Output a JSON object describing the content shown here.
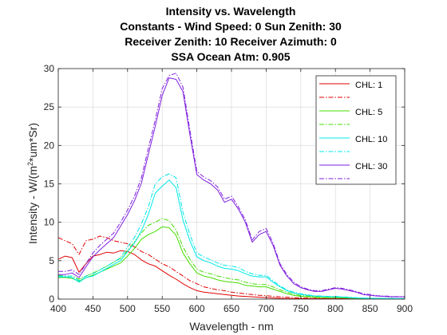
{
  "chart_data": {
    "type": "line",
    "title_lines": [
      "Intensity vs. Wavelength",
      "Constants - Wind Speed: 0 Sun Zenith: 30",
      "Receiver Zenith: 10 Receiver Azimuth: 0",
      "SSA Ocean Atm: 0.905"
    ],
    "xlabel": "Wavelength - nm",
    "ylabel": {
      "prefix": "Intensity - W/(m",
      "superscript": "2",
      "suffix": "*um*Sr)"
    },
    "xlim": [
      400,
      900
    ],
    "ylim": [
      0,
      30
    ],
    "xticks": [
      "400",
      "450",
      "500",
      "550",
      "600",
      "650",
      "700",
      "750",
      "800",
      "850",
      "900"
    ],
    "yticks": [
      "0",
      "5",
      "10",
      "15",
      "20",
      "25",
      "30"
    ],
    "grid": true,
    "legend_position": "top-right",
    "legend_labels": [
      "CHL: 1",
      "CHL: 5",
      "CHL: 10",
      "CHL: 30"
    ],
    "x": [
      400,
      410,
      420,
      430,
      440,
      450,
      460,
      470,
      480,
      490,
      500,
      510,
      520,
      530,
      540,
      550,
      560,
      570,
      580,
      590,
      600,
      610,
      620,
      630,
      640,
      650,
      660,
      670,
      680,
      690,
      700,
      710,
      720,
      730,
      740,
      750,
      760,
      770,
      780,
      790,
      800,
      810,
      820,
      830,
      840,
      850,
      860,
      870,
      880,
      890,
      900
    ],
    "series": [
      {
        "color": "#e00000",
        "dash": "solid",
        "values": [
          5.2,
          5.6,
          5.4,
          3.5,
          4.6,
          5.6,
          5.8,
          6.1,
          6.0,
          6.3,
          6.2,
          5.8,
          5.1,
          4.6,
          4.3,
          3.7,
          3.1,
          2.6,
          2.0,
          1.5,
          1.1,
          0.9,
          0.8,
          0.7,
          0.6,
          0.5,
          0.4,
          0.35,
          0.3,
          0.25,
          0.2,
          0.15,
          0.1,
          0.08,
          0.06,
          0.05,
          0.05,
          0.05,
          0.05,
          0.05,
          0.05,
          0.05,
          0.05,
          0.05,
          0.05,
          0.05,
          0.05,
          0.05,
          0.05,
          0.05,
          0.05
        ]
      },
      {
        "color": "#e00000",
        "dash": "dashdot",
        "values": [
          8.0,
          7.6,
          7.2,
          5.8,
          7.6,
          7.8,
          8.2,
          8.0,
          7.6,
          7.4,
          7.2,
          6.8,
          6.2,
          5.8,
          5.2,
          4.6,
          4.2,
          3.6,
          3.0,
          2.4,
          2.0,
          1.6,
          1.4,
          1.2,
          1.1,
          0.9,
          0.8,
          0.7,
          0.6,
          0.5,
          0.45,
          0.35,
          0.3,
          0.25,
          0.2,
          0.15,
          0.12,
          0.1,
          0.08,
          0.07,
          0.06,
          0.05,
          0.05,
          0.05,
          0.05,
          0.05,
          0.05,
          0.05,
          0.05,
          0.05,
          0.05
        ]
      },
      {
        "color": "#44dd00",
        "dash": "solid",
        "values": [
          2.8,
          2.8,
          2.7,
          2.3,
          2.8,
          3.1,
          3.5,
          3.9,
          4.3,
          4.7,
          5.6,
          6.6,
          7.8,
          8.4,
          8.8,
          9.4,
          9.3,
          8.3,
          6.0,
          4.6,
          3.4,
          3.0,
          2.8,
          2.5,
          2.3,
          2.2,
          2.1,
          1.8,
          1.7,
          1.6,
          1.6,
          1.3,
          1.0,
          0.7,
          0.5,
          0.35,
          0.3,
          0.25,
          0.2,
          0.18,
          0.18,
          0.16,
          0.12,
          0.1,
          0.08,
          0.07,
          0.06,
          0.05,
          0.05,
          0.05,
          0.05
        ]
      },
      {
        "color": "#44dd00",
        "dash": "dashdot",
        "values": [
          3.1,
          3.0,
          3.0,
          2.6,
          3.0,
          3.4,
          3.8,
          4.3,
          4.8,
          5.3,
          6.3,
          7.5,
          8.6,
          9.6,
          10.0,
          10.5,
          10.2,
          9.0,
          6.8,
          5.2,
          3.9,
          3.5,
          3.3,
          3.0,
          2.8,
          2.6,
          2.5,
          2.2,
          2.0,
          1.9,
          1.9,
          1.6,
          1.2,
          0.9,
          0.65,
          0.45,
          0.4,
          0.33,
          0.28,
          0.25,
          0.25,
          0.22,
          0.18,
          0.14,
          0.11,
          0.09,
          0.08,
          0.07,
          0.06,
          0.05,
          0.05
        ]
      },
      {
        "color": "#00e8e8",
        "dash": "solid",
        "values": [
          2.9,
          2.9,
          2.8,
          2.2,
          2.8,
          3.0,
          3.5,
          4.0,
          4.5,
          5.0,
          6.2,
          7.3,
          8.9,
          11.0,
          13.8,
          14.7,
          15.5,
          14.5,
          10.3,
          7.6,
          5.5,
          5.0,
          4.7,
          4.3,
          4.0,
          3.9,
          3.7,
          3.3,
          3.0,
          2.9,
          2.9,
          2.2,
          1.6,
          1.1,
          0.8,
          0.6,
          0.5,
          0.4,
          0.35,
          0.3,
          0.3,
          0.26,
          0.2,
          0.15,
          0.12,
          0.1,
          0.09,
          0.08,
          0.07,
          0.06,
          0.06
        ]
      },
      {
        "color": "#00e8e8",
        "dash": "dashdot",
        "values": [
          3.0,
          3.0,
          3.0,
          2.4,
          3.0,
          3.3,
          3.8,
          4.3,
          4.8,
          5.4,
          6.8,
          8.0,
          9.8,
          12.0,
          15.0,
          15.9,
          16.3,
          15.8,
          11.3,
          8.4,
          6.0,
          5.5,
          5.1,
          4.7,
          4.4,
          4.3,
          4.1,
          3.6,
          3.3,
          3.1,
          3.1,
          2.4,
          1.7,
          1.2,
          0.9,
          0.7,
          0.55,
          0.45,
          0.4,
          0.35,
          0.35,
          0.3,
          0.25,
          0.18,
          0.14,
          0.12,
          0.1,
          0.09,
          0.08,
          0.07,
          0.06
        ]
      },
      {
        "color": "#7f1fdf",
        "dash": "solid",
        "values": [
          3.2,
          3.2,
          3.4,
          2.8,
          4.2,
          5.5,
          6.4,
          7.2,
          8.0,
          9.5,
          11.0,
          12.8,
          15.1,
          18.8,
          22.5,
          26.5,
          28.8,
          28.6,
          27.0,
          21.4,
          16.2,
          15.5,
          15.0,
          14.2,
          12.6,
          13.0,
          11.7,
          10.0,
          7.4,
          8.4,
          8.8,
          7.0,
          4.4,
          3.0,
          2.0,
          1.5,
          1.2,
          1.0,
          1.0,
          1.2,
          1.4,
          1.3,
          1.1,
          0.9,
          0.6,
          0.5,
          0.4,
          0.35,
          0.3,
          0.3,
          0.3
        ]
      },
      {
        "color": "#7f1fdf",
        "dash": "dashdot",
        "values": [
          3.6,
          3.6,
          3.8,
          3.2,
          4.6,
          6.0,
          7.0,
          7.8,
          8.6,
          10.0,
          11.6,
          13.4,
          15.8,
          19.6,
          23.3,
          27.4,
          29.1,
          29.4,
          27.6,
          22.0,
          16.6,
          15.9,
          15.4,
          14.6,
          13.0,
          13.4,
          12.0,
          10.3,
          7.7,
          8.8,
          9.2,
          7.3,
          4.6,
          3.2,
          2.2,
          1.6,
          1.3,
          1.1,
          1.1,
          1.3,
          1.5,
          1.4,
          1.2,
          1.0,
          0.7,
          0.6,
          0.45,
          0.4,
          0.35,
          0.32,
          0.32
        ]
      }
    ]
  }
}
